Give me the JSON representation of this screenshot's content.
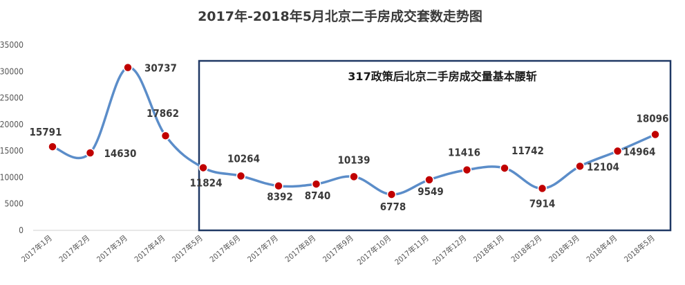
{
  "chart_data": {
    "type": "line",
    "title": "2017年-2018年5月北京二手房成交套数走势图",
    "annotation": "317政策后北京二手房成交量基本腰斩",
    "xlabel": "",
    "ylabel": "",
    "ylim": [
      0,
      35000
    ],
    "yticks": [
      "0",
      "5000",
      "10000",
      "15000",
      "20000",
      "25000",
      "30000",
      "35000"
    ],
    "grid": false,
    "legend": "none",
    "categories": [
      "2017年1月",
      "2017年2月",
      "2017年3月",
      "2017年4月",
      "2017年5月",
      "2017年6月",
      "2017年7月",
      "2017年8月",
      "2017年9月",
      "2017年10月",
      "2017年11月",
      "2017年12月",
      "2018年1月",
      "2018年2月",
      "2018年3月",
      "2018年4月",
      "2018年5月"
    ],
    "series": [
      {
        "values": [
          15791,
          14630,
          30737,
          17862,
          11824,
          10264,
          8392,
          8740,
          10139,
          6778,
          9549,
          11416,
          11742,
          7914,
          12104,
          14964,
          18096
        ]
      }
    ],
    "colors": {
      "line": "#5b8dc9",
      "marker": "#c00000",
      "box": "#1f3864"
    }
  }
}
